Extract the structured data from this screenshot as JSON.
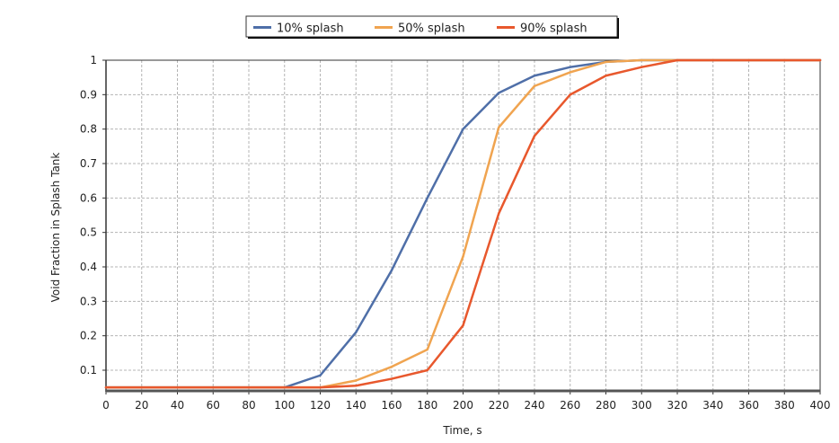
{
  "chart_data": {
    "type": "line",
    "title": "",
    "xlabel": "Time, s",
    "ylabel": "Void Fraction in Splash Tank",
    "xlim": [
      0,
      400
    ],
    "ylim": [
      0.04,
      1.0
    ],
    "xticks": [
      0,
      20,
      40,
      60,
      80,
      100,
      120,
      140,
      160,
      180,
      200,
      220,
      240,
      260,
      280,
      300,
      320,
      340,
      360,
      380,
      400
    ],
    "yticks": [
      0.1,
      0.2,
      0.3,
      0.4,
      0.5,
      0.6,
      0.7,
      0.8,
      0.9,
      1
    ],
    "ytick_labels": [
      "0.1",
      "0.2",
      "0.3",
      "0.4",
      "0.5",
      "0.6",
      "0.7",
      "0.8",
      "0.9",
      "1"
    ],
    "grid": true,
    "legend_position": "top-center",
    "x": [
      0,
      20,
      40,
      60,
      80,
      100,
      120,
      140,
      160,
      180,
      200,
      220,
      240,
      260,
      280,
      300,
      320,
      340,
      360,
      380,
      400
    ],
    "series": [
      {
        "name": "10% splash",
        "color": "#4f6fa8",
        "values": [
          0.05,
          0.05,
          0.05,
          0.05,
          0.05,
          0.05,
          0.085,
          0.21,
          0.39,
          0.6,
          0.8,
          0.905,
          0.955,
          0.98,
          0.995,
          1.0,
          1.0,
          1.0,
          1.0,
          1.0,
          1.0
        ]
      },
      {
        "name": "50% splash",
        "color": "#f0a450",
        "values": [
          0.05,
          0.05,
          0.05,
          0.05,
          0.05,
          0.05,
          0.05,
          0.07,
          0.11,
          0.16,
          0.43,
          0.805,
          0.925,
          0.965,
          0.995,
          1.0,
          1.0,
          1.0,
          1.0,
          1.0,
          1.0
        ]
      },
      {
        "name": "90% splash",
        "color": "#e8582d",
        "values": [
          0.05,
          0.05,
          0.05,
          0.05,
          0.05,
          0.05,
          0.05,
          0.055,
          0.075,
          0.1,
          0.23,
          0.555,
          0.78,
          0.9,
          0.955,
          0.98,
          1.0,
          1.0,
          1.0,
          1.0,
          1.0
        ]
      }
    ]
  }
}
